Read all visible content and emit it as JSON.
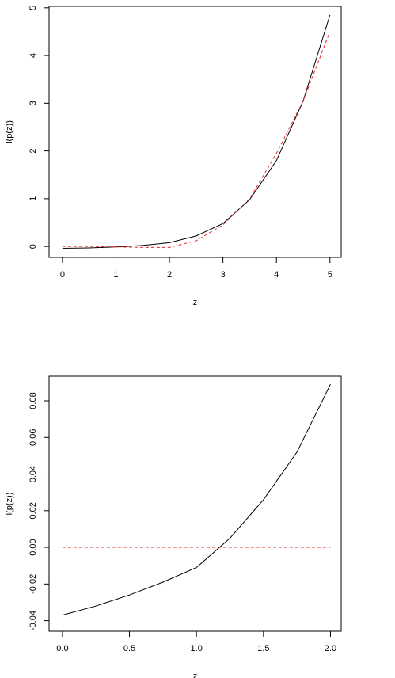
{
  "chart_data": [
    {
      "type": "line",
      "xlabel": "z",
      "ylabel": "l(p(z))",
      "x": [
        0,
        0.5,
        1,
        1.5,
        2,
        2.5,
        3,
        3.5,
        4,
        4.5,
        5
      ],
      "series": [
        {
          "color": "#000000",
          "linestyle": "solid",
          "values": [
            -0.04,
            -0.03,
            -0.01,
            0.02,
            0.08,
            0.22,
            0.48,
            0.98,
            1.8,
            3.05,
            4.85
          ]
        },
        {
          "color": "#e8292b",
          "linestyle": "dashed",
          "values": [
            0.0,
            0.0,
            -0.01,
            -0.02,
            -0.02,
            0.12,
            0.45,
            1.0,
            1.95,
            3.05,
            4.5
          ]
        }
      ],
      "xlim": [
        -0.25,
        5.21
      ],
      "ylim": [
        -0.23,
        5.03
      ],
      "xticks": [
        0,
        1,
        2,
        3,
        4,
        5
      ],
      "yticks": [
        0,
        1,
        2,
        3,
        4,
        5
      ]
    },
    {
      "type": "line",
      "xlabel": "z",
      "ylabel": "l(p(z))",
      "x": [
        0,
        0.25,
        0.5,
        0.75,
        1,
        1.25,
        1.5,
        1.75,
        2
      ],
      "series": [
        {
          "color": "#000000",
          "linestyle": "solid",
          "values": [
            -0.037,
            -0.032,
            -0.026,
            -0.019,
            -0.011,
            0.005,
            0.026,
            0.052,
            0.089
          ]
        },
        {
          "color": "#e8292b",
          "linestyle": "dashed",
          "values": [
            0,
            0,
            0,
            0,
            0,
            0,
            0,
            0,
            0
          ]
        }
      ],
      "xlim": [
        -0.1,
        2.08
      ],
      "ylim": [
        -0.0458,
        0.0934
      ],
      "xticks": [
        {
          "value": 0,
          "label": "0.0"
        },
        0.5,
        {
          "value": 1,
          "label": "1.0"
        },
        1.5,
        {
          "value": 2,
          "label": "2.0"
        }
      ],
      "yticks": [
        -0.04,
        -0.02,
        {
          "value": 0,
          "label": "0.00"
        },
        0.02,
        0.04,
        0.06,
        0.08
      ]
    }
  ]
}
